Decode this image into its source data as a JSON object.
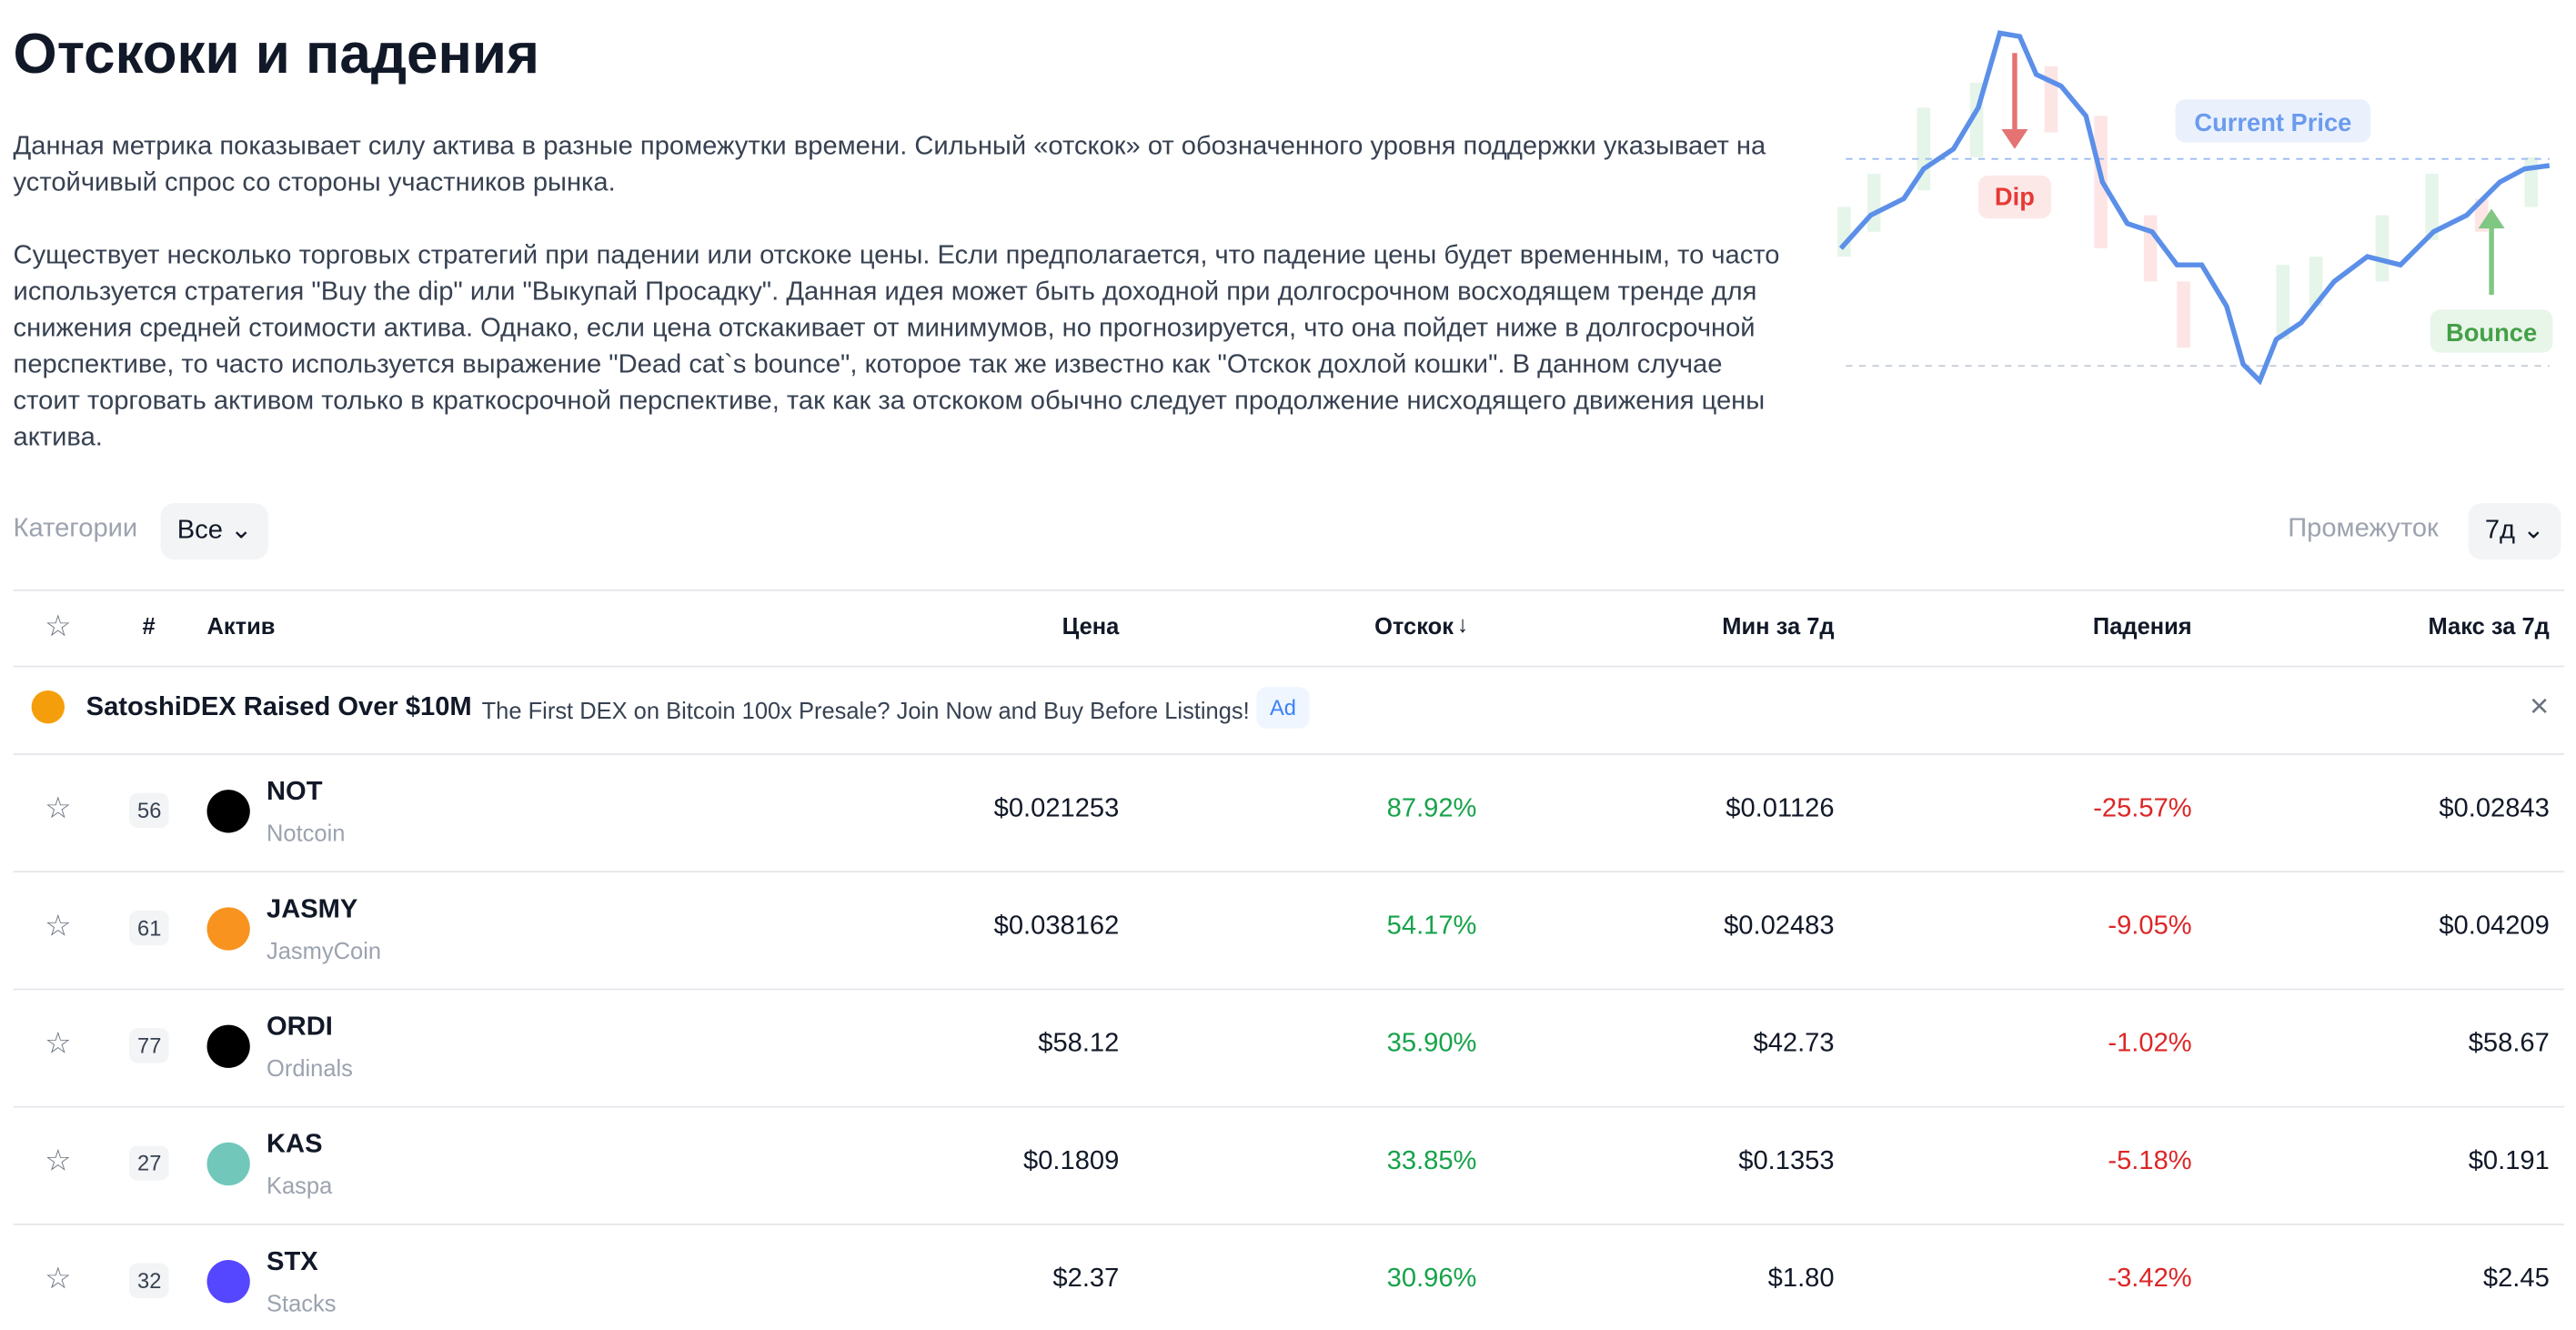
{
  "header": {
    "title": "Отскоки и падения",
    "paragraphs": [
      "Данная метрика показывает силу актива в разные промежутки времени. Сильный «отскок» от обозначенного уровня поддержки указывает на устойчивый спрос со стороны участников рынка.",
      "Существует несколько торговых стратегий при падении или отскоке цены. Если предполагается, что падение цены будет временным, то часто используется стратегия \"Buy the dip\" или \"Выкупай Просадку\". Данная идея может быть доходной при долгосрочном восходящем тренде для снижения средней стоимости актива. Однако, если цена отскакивает от минимумов, но прогнозируется, что она пойдет ниже в долгосрочной перспективе, то часто используется выражение \"Dead cat`s bounce\", которое так же известно как \"Отскок дохлой кошки\". В данном случае стоит торговать активом только в краткосрочной перспективе, так как за отскоком обычно следует продолжение нисходящего движения цены актива."
    ]
  },
  "illustration": {
    "dip": "Dip",
    "current_price": "Current Price",
    "bounce": "Bounce"
  },
  "filters": {
    "category_label": "Категории",
    "category_value": "Все",
    "period_label": "Промежуток",
    "period_value": "7д"
  },
  "table": {
    "headers": [
      "#",
      "Актив",
      "Цена",
      "Отскок",
      "Мин за 7д",
      "Падения",
      "Макс за 7д"
    ],
    "ad": {
      "title": "SatoshiDEX Raised Over $10M",
      "text": "The First DEX on Bitcoin 100x Presale? Join Now and Buy Before Listings!",
      "badge": "Ad"
    },
    "rows": [
      {
        "rank": "56",
        "symbol": "NOT",
        "name": "Notcoin",
        "price": "$0.021253",
        "bounce": "87.92%",
        "min": "$0.01126",
        "drop": "-25.57%",
        "max": "$0.02843",
        "color": "#000000"
      },
      {
        "rank": "61",
        "symbol": "JASMY",
        "name": "JasmyCoin",
        "price": "$0.038162",
        "bounce": "54.17%",
        "min": "$0.02483",
        "drop": "-9.05%",
        "max": "$0.04209",
        "color": "#f7931e"
      },
      {
        "rank": "77",
        "symbol": "ORDI",
        "name": "Ordinals",
        "price": "$58.12",
        "bounce": "35.90%",
        "min": "$42.73",
        "drop": "-1.02%",
        "max": "$58.67",
        "color": "#000000"
      },
      {
        "rank": "27",
        "symbol": "KAS",
        "name": "Kaspa",
        "price": "$0.1809",
        "bounce": "33.85%",
        "min": "$0.1353",
        "drop": "-5.18%",
        "max": "$0.191",
        "color": "#70c7ba"
      },
      {
        "rank": "32",
        "symbol": "STX",
        "name": "Stacks",
        "price": "$2.37",
        "bounce": "30.96%",
        "min": "$1.80",
        "drop": "-3.42%",
        "max": "$2.45",
        "color": "#5546ff"
      }
    ]
  }
}
